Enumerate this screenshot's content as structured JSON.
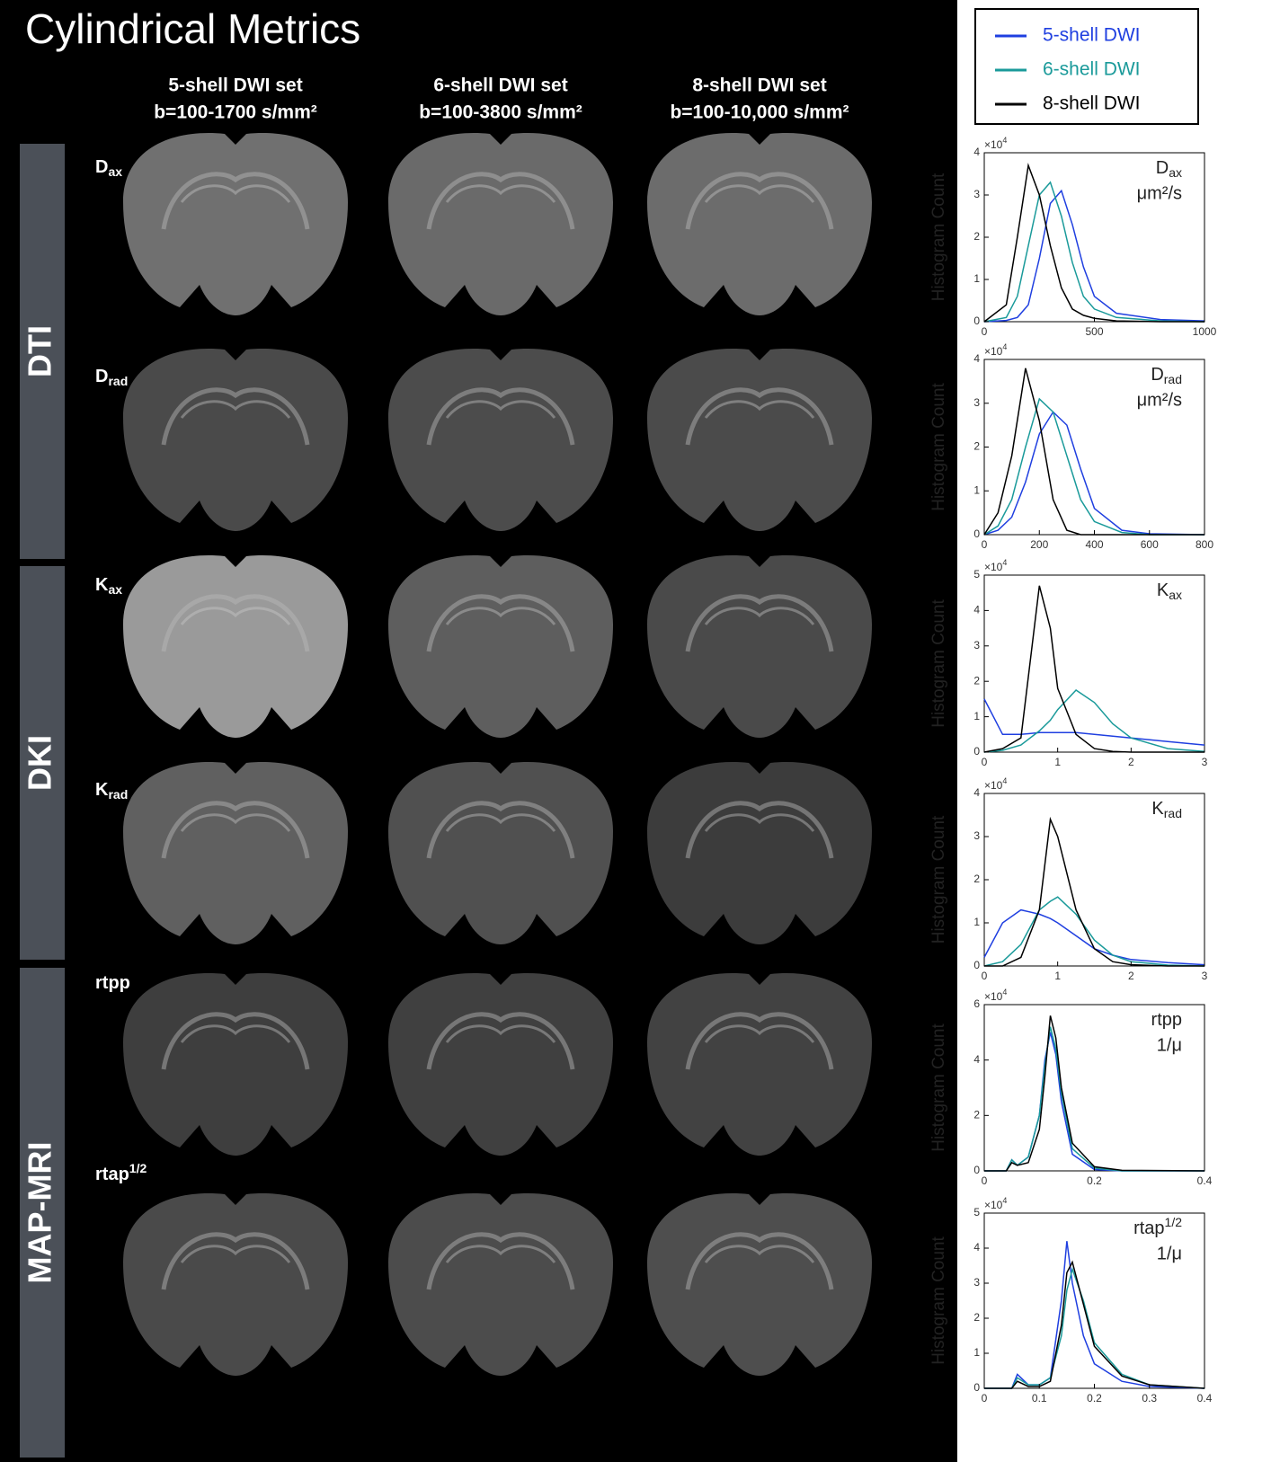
{
  "figure": {
    "title": "Cylindrical Metrics",
    "columns": [
      {
        "name": "5-shell DWI set",
        "range": "b=100-1700 s/mm²"
      },
      {
        "name": "6-shell DWI set",
        "range": "b=100-3800 s/mm²"
      },
      {
        "name": "8-shell DWI set",
        "range": "b=100-10,000 s/mm²"
      }
    ],
    "groups": [
      "DTI",
      "DKI",
      "MAP-MRI"
    ],
    "metrics": [
      {
        "base": "D",
        "sub": "ax"
      },
      {
        "base": "D",
        "sub": "rad"
      },
      {
        "base": "K",
        "sub": "ax"
      },
      {
        "base": "K",
        "sub": "rad"
      },
      {
        "base": "rtpp"
      },
      {
        "base": "rtap",
        "sup": "1/2"
      }
    ],
    "legend": [
      {
        "name": "5-shell DWI",
        "color": "#1f3fe0"
      },
      {
        "name": "6-shell DWI",
        "color": "#1a9a9a"
      },
      {
        "name": "8-shell DWI",
        "color": "#000000"
      }
    ]
  },
  "chart_data": [
    {
      "type": "line",
      "ylabel": "Histogram Count",
      "y_scale_base": "×10",
      "y_scale_exp": "4",
      "annotation": {
        "base": "D",
        "sub": "ax",
        "unit": "μm²/s"
      },
      "x": [
        0,
        100,
        150,
        200,
        250,
        300,
        350,
        400,
        450,
        500,
        600,
        800,
        1000
      ],
      "xlim": [
        0,
        1000
      ],
      "xticks": [
        0,
        500,
        1000
      ],
      "ylim": [
        0,
        4
      ],
      "yticks": [
        0,
        1,
        2,
        3,
        4
      ],
      "series": [
        {
          "color": "#1f3fe0",
          "values": [
            0,
            0.03,
            0.1,
            0.4,
            1.5,
            2.8,
            3.1,
            2.3,
            1.3,
            0.6,
            0.2,
            0.05,
            0.02
          ]
        },
        {
          "color": "#1a9a9a",
          "values": [
            0,
            0.1,
            0.6,
            1.8,
            3.0,
            3.3,
            2.5,
            1.4,
            0.6,
            0.3,
            0.1,
            0.02,
            0
          ]
        },
        {
          "color": "#000000",
          "values": [
            0,
            0.4,
            2.0,
            3.7,
            3.0,
            1.8,
            0.8,
            0.3,
            0.15,
            0.08,
            0.02,
            0,
            0
          ]
        }
      ]
    },
    {
      "type": "line",
      "ylabel": "Histogram Count",
      "y_scale_base": "×10",
      "y_scale_exp": "4",
      "annotation": {
        "base": "D",
        "sub": "rad",
        "unit": "μm²/s"
      },
      "x": [
        0,
        50,
        100,
        150,
        200,
        250,
        300,
        350,
        400,
        500,
        600,
        800
      ],
      "xlim": [
        0,
        800
      ],
      "xticks": [
        0,
        200,
        400,
        600,
        800
      ],
      "ylim": [
        0,
        4
      ],
      "yticks": [
        0,
        1,
        2,
        3,
        4
      ],
      "series": [
        {
          "color": "#1f3fe0",
          "values": [
            0,
            0.1,
            0.4,
            1.2,
            2.3,
            2.8,
            2.5,
            1.5,
            0.6,
            0.1,
            0.02,
            0
          ]
        },
        {
          "color": "#1a9a9a",
          "values": [
            0,
            0.2,
            0.8,
            2.0,
            3.1,
            2.8,
            1.8,
            0.8,
            0.3,
            0.05,
            0,
            0
          ]
        },
        {
          "color": "#000000",
          "values": [
            0,
            0.5,
            1.8,
            3.8,
            2.6,
            0.8,
            0.1,
            0,
            0,
            0,
            0,
            0
          ]
        }
      ]
    },
    {
      "type": "line",
      "ylabel": "Histogram Count",
      "y_scale_base": "×10",
      "y_scale_exp": "4",
      "annotation": {
        "base": "K",
        "sub": "ax"
      },
      "x": [
        0,
        0.25,
        0.5,
        0.75,
        0.9,
        1.0,
        1.25,
        1.5,
        1.75,
        2,
        2.5,
        3
      ],
      "xlim": [
        0,
        3
      ],
      "xticks": [
        0,
        1,
        2,
        3
      ],
      "ylim": [
        0,
        5
      ],
      "yticks": [
        0,
        1,
        2,
        3,
        4,
        5
      ],
      "series": [
        {
          "color": "#1f3fe0",
          "values": [
            1.5,
            0.5,
            0.5,
            0.55,
            0.55,
            0.55,
            0.55,
            0.5,
            0.45,
            0.4,
            0.3,
            0.2
          ]
        },
        {
          "color": "#1a9a9a",
          "values": [
            0,
            0.05,
            0.2,
            0.6,
            0.9,
            1.2,
            1.75,
            1.4,
            0.8,
            0.4,
            0.1,
            0.02
          ]
        },
        {
          "color": "#000000",
          "values": [
            0,
            0.1,
            0.4,
            4.7,
            3.5,
            1.8,
            0.5,
            0.1,
            0.02,
            0,
            0,
            0
          ]
        }
      ]
    },
    {
      "type": "line",
      "ylabel": "Histogram Count",
      "y_scale_base": "×10",
      "y_scale_exp": "4",
      "annotation": {
        "base": "K",
        "sub": "rad"
      },
      "x": [
        0,
        0.25,
        0.5,
        0.75,
        0.9,
        1.0,
        1.25,
        1.5,
        1.75,
        2,
        2.5,
        3
      ],
      "xlim": [
        0,
        3
      ],
      "xticks": [
        0,
        1,
        2,
        3
      ],
      "ylim": [
        0,
        4
      ],
      "yticks": [
        0,
        1,
        2,
        3,
        4
      ],
      "series": [
        {
          "color": "#1f3fe0",
          "values": [
            0.2,
            1.0,
            1.3,
            1.2,
            1.1,
            1.0,
            0.7,
            0.4,
            0.25,
            0.15,
            0.08,
            0.03
          ]
        },
        {
          "color": "#1a9a9a",
          "values": [
            0,
            0.1,
            0.5,
            1.3,
            1.5,
            1.6,
            1.2,
            0.6,
            0.25,
            0.1,
            0.02,
            0
          ]
        },
        {
          "color": "#000000",
          "values": [
            0,
            0,
            0.2,
            1.3,
            3.4,
            3.0,
            1.3,
            0.4,
            0.1,
            0.03,
            0,
            0
          ]
        }
      ]
    },
    {
      "type": "line",
      "ylabel": "Histogram Count",
      "y_scale_base": "×10",
      "y_scale_exp": "4",
      "annotation": {
        "base": "rtpp",
        "unit": "1/μ"
      },
      "x": [
        0,
        0.04,
        0.05,
        0.06,
        0.08,
        0.1,
        0.11,
        0.12,
        0.13,
        0.14,
        0.16,
        0.2,
        0.25,
        0.4
      ],
      "xlim": [
        0,
        0.4
      ],
      "xticks": [
        0,
        0.2,
        0.4
      ],
      "ylim": [
        0,
        6
      ],
      "yticks": [
        0,
        2,
        4,
        6
      ],
      "series": [
        {
          "color": "#1f3fe0",
          "values": [
            0,
            0,
            0.4,
            0.2,
            0.5,
            2.0,
            4.0,
            5.0,
            4.2,
            2.5,
            0.6,
            0.05,
            0,
            0
          ]
        },
        {
          "color": "#1a9a9a",
          "values": [
            0,
            0,
            0.4,
            0.2,
            0.5,
            2.0,
            3.8,
            5.2,
            4.4,
            2.8,
            0.8,
            0.1,
            0,
            0
          ]
        },
        {
          "color": "#000000",
          "values": [
            0,
            0,
            0.3,
            0.2,
            0.3,
            1.5,
            3.4,
            5.6,
            4.8,
            3.0,
            1.0,
            0.15,
            0.02,
            0
          ]
        }
      ]
    },
    {
      "type": "line",
      "ylabel": "Histogram Count",
      "y_scale_base": "×10",
      "y_scale_exp": "4",
      "annotation": {
        "base": "rtap",
        "sup": "1/2",
        "unit": "1/μ"
      },
      "x": [
        0,
        0.05,
        0.06,
        0.08,
        0.1,
        0.12,
        0.14,
        0.15,
        0.16,
        0.18,
        0.2,
        0.25,
        0.3,
        0.4
      ],
      "xlim": [
        0,
        0.4
      ],
      "xticks": [
        0,
        0.1,
        0.2,
        0.3,
        0.4
      ],
      "ylim": [
        0,
        5
      ],
      "yticks": [
        0,
        1,
        2,
        3,
        4,
        5
      ],
      "series": [
        {
          "color": "#1f3fe0",
          "values": [
            0,
            0,
            0.4,
            0.1,
            0.1,
            0.3,
            2.5,
            4.2,
            3.0,
            1.5,
            0.7,
            0.2,
            0.05,
            0
          ]
        },
        {
          "color": "#1a9a9a",
          "values": [
            0,
            0,
            0.3,
            0.1,
            0.1,
            0.3,
            1.5,
            2.8,
            3.4,
            2.5,
            1.3,
            0.4,
            0.1,
            0
          ]
        },
        {
          "color": "#000000",
          "values": [
            0,
            0,
            0.2,
            0.05,
            0.05,
            0.2,
            1.8,
            3.3,
            3.6,
            2.4,
            1.2,
            0.35,
            0.1,
            0
          ]
        }
      ]
    }
  ]
}
